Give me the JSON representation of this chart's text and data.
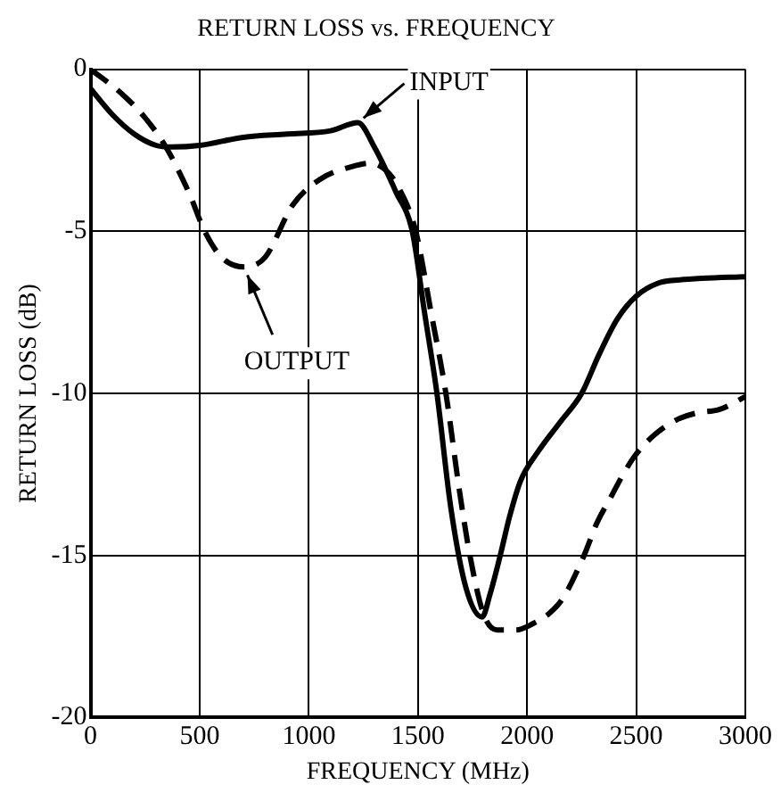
{
  "chart_data": {
    "type": "line",
    "title": "RETURN LOSS vs. FREQUENCY",
    "xlabel": "FREQUENCY (MHz)",
    "ylabel": "RETURN LOSS (dB)",
    "xlim": [
      0,
      3000
    ],
    "xticks": [
      0,
      500,
      1000,
      1500,
      2000,
      2500,
      3000
    ],
    "ylim": [
      -20,
      0
    ],
    "yticks": [
      -20,
      -15,
      -10,
      -5,
      0
    ],
    "grid": true,
    "legend": false,
    "marker": "none",
    "series": [
      {
        "color": "#000000",
        "line_style": "solid",
        "x": [
          0,
          100,
          200,
          300,
          372,
          500,
          700,
          900,
          1100,
          1225,
          1300,
          1400,
          1474,
          1530,
          1587,
          1650,
          1720,
          1794,
          1830,
          1877,
          1920,
          1970,
          2050,
          2150,
          2250,
          2330,
          2414,
          2500,
          2600,
          2700,
          2800,
          3000
        ],
        "values": [
          -0.6,
          -1.4,
          -2.0,
          -2.35,
          -2.4,
          -2.35,
          -2.1,
          -2.0,
          -1.9,
          -1.65,
          -2.4,
          -3.8,
          -5.0,
          -7.5,
          -10.0,
          -13.5,
          -16.0,
          -16.9,
          -16.2,
          -15.0,
          -13.8,
          -12.7,
          -11.8,
          -10.9,
          -10.0,
          -8.8,
          -7.7,
          -7.0,
          -6.6,
          -6.5,
          -6.45,
          -6.4
        ]
      },
      {
        "color": "#000000",
        "line_style": "dashed",
        "x": [
          0,
          150,
          250,
          345,
          450,
          523,
          600,
          703,
          800,
          925,
          1050,
          1200,
          1283,
          1350,
          1407,
          1490,
          1560,
          1628,
          1690,
          1738,
          1800,
          1862,
          1950,
          2028,
          2100,
          2166,
          2261,
          2320,
          2384,
          2440,
          2497,
          2580,
          2690,
          2780,
          2880,
          3000
        ],
        "values": [
          0,
          -0.8,
          -1.5,
          -2.4,
          -3.8,
          -5.0,
          -5.8,
          -6.1,
          -5.8,
          -4.2,
          -3.4,
          -3.0,
          -2.9,
          -3.1,
          -3.6,
          -5.0,
          -7.5,
          -10.0,
          -13.0,
          -15.0,
          -16.8,
          -17.3,
          -17.3,
          -17.1,
          -16.8,
          -16.3,
          -15.0,
          -14.0,
          -13.2,
          -12.5,
          -11.9,
          -11.3,
          -10.8,
          -10.6,
          -10.5,
          -10.1
        ]
      }
    ],
    "annotations": [
      {
        "text": "INPUT",
        "x": 1225,
        "y": -1.65
      },
      {
        "text": "OUTPUT",
        "x": 703,
        "y": -6.1
      }
    ]
  }
}
